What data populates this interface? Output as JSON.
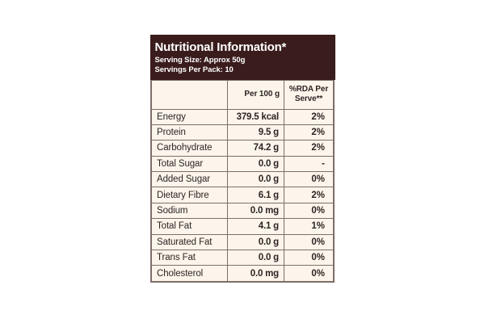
{
  "colors": {
    "page_bg": "#ffffff",
    "header_bg": "#3b1c1c",
    "header_text": "#ffffff",
    "body_bg": "#fbf5eb",
    "border": "#7f6e69",
    "text": "#2f2424"
  },
  "panel": {
    "title": "Nutritional Information*",
    "serving_size": "Serving Size: Approx 50g",
    "servings_per_pack": "Servings Per Pack: 10"
  },
  "table": {
    "columns": [
      "",
      "Per 100 g",
      "%RDA Per Serve**"
    ],
    "rows": [
      {
        "label": "Energy",
        "per_100g": "379.5 kcal",
        "rda": "2%"
      },
      {
        "label": "Protein",
        "per_100g": "9.5 g",
        "rda": "2%"
      },
      {
        "label": "Carbohydrate",
        "per_100g": "74.2 g",
        "rda": "2%"
      },
      {
        "label": "Total Sugar",
        "per_100g": "0.0 g",
        "rda": "-"
      },
      {
        "label": "Added Sugar",
        "per_100g": "0.0 g",
        "rda": "0%"
      },
      {
        "label": "Dietary Fibre",
        "per_100g": "6.1 g",
        "rda": "2%"
      },
      {
        "label": "Sodium",
        "per_100g": "0.0 mg",
        "rda": "0%"
      },
      {
        "label": "Total Fat",
        "per_100g": "4.1 g",
        "rda": "1%"
      },
      {
        "label": "Saturated Fat",
        "per_100g": "0.0 g",
        "rda": "0%"
      },
      {
        "label": "Trans Fat",
        "per_100g": "0.0 g",
        "rda": "0%"
      },
      {
        "label": "Cholesterol",
        "per_100g": "0.0 mg",
        "rda": "0%"
      }
    ]
  }
}
